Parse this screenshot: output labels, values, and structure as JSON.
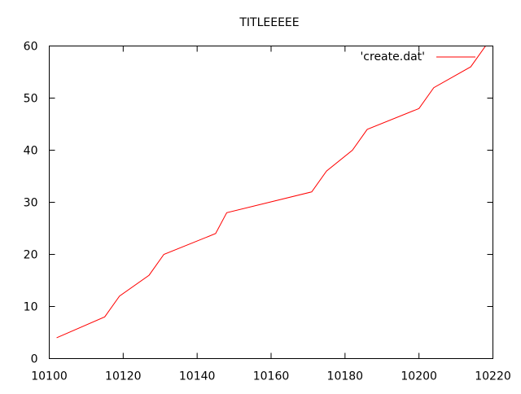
{
  "chart_data": {
    "type": "line",
    "title": "TITLEEEEE",
    "xlabel": "",
    "ylabel": "",
    "xlim": [
      10100,
      10220
    ],
    "ylim": [
      0,
      60
    ],
    "x_ticks": [
      10100,
      10120,
      10140,
      10160,
      10180,
      10200,
      10220
    ],
    "y_ticks": [
      0,
      10,
      20,
      30,
      40,
      50,
      60
    ],
    "grid": false,
    "legend_position": "top-right",
    "series": [
      {
        "name": "'create.dat'",
        "color": "#ff0000",
        "x": [
          10102,
          10115,
          10119,
          10127,
          10131,
          10145,
          10148,
          10171,
          10175,
          10182,
          10186,
          10200,
          10204,
          10214,
          10219
        ],
        "y": [
          4,
          8,
          12,
          16,
          20,
          24,
          28,
          32,
          36,
          40,
          44,
          48,
          52,
          56,
          61
        ]
      }
    ]
  }
}
